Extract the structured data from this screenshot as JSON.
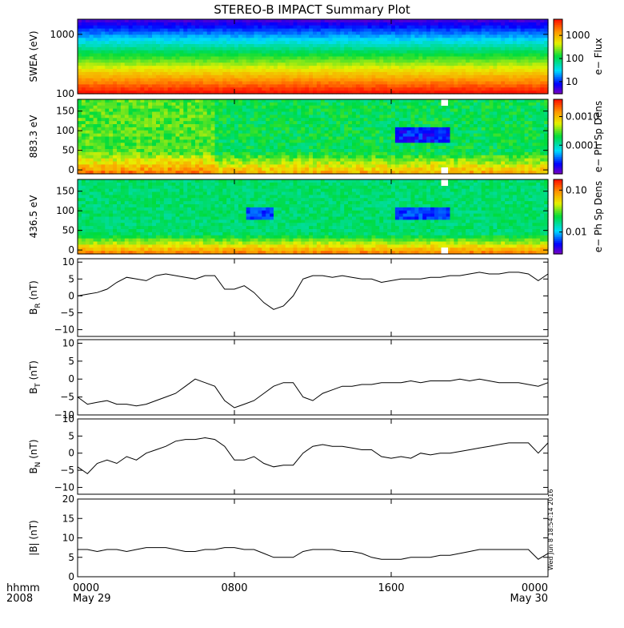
{
  "title": "STEREO-B IMPACT Summary Plot",
  "timestamp": "Wed Jun 8 18:54:14 2016",
  "time_axis": {
    "row1_label": "hhmm",
    "row2_label": "2008",
    "ticks": [
      {
        "hour": 0,
        "label": "0000",
        "date": "May 29"
      },
      {
        "hour": 8,
        "label": "0800",
        "date": ""
      },
      {
        "hour": 16,
        "label": "1600",
        "date": ""
      },
      {
        "hour": 24,
        "label": "0000",
        "date": "May 30"
      }
    ]
  },
  "colors": {
    "line": "#000000",
    "gap": "#ffffff"
  },
  "chart_data": [
    {
      "type": "heatmap",
      "id": "swea",
      "ylabel": "SWEA (eV)",
      "ylim": [
        100,
        1800
      ],
      "yscale": "log",
      "yticks": [
        {
          "v": 100,
          "label": "100"
        },
        {
          "v": 1000,
          "label": "1000"
        }
      ],
      "colorbar": {
        "label": "e− Flux",
        "scale": "log",
        "range": [
          3,
          5000
        ],
        "ticks": [
          {
            "v": 10,
            "label": "10"
          },
          {
            "v": 100,
            "label": "100"
          },
          {
            "v": 1000,
            "label": "1000"
          }
        ]
      }
    },
    {
      "type": "heatmap",
      "id": "pad883",
      "ylabel": "883.3 eV",
      "ylim": [
        -10,
        180
      ],
      "yticks": [
        {
          "v": 0,
          "label": "0"
        },
        {
          "v": 50,
          "label": "50"
        },
        {
          "v": 100,
          "label": "100"
        },
        {
          "v": 150,
          "label": "150"
        }
      ],
      "gap_hours": [
        18.55,
        18.9
      ],
      "colorbar": {
        "label": "e− Ph Sp Dens",
        "scale": "log",
        "range": [
          1e-05,
          0.004
        ],
        "ticks": [
          {
            "v": 0.0001,
            "label": "0.0001"
          },
          {
            "v": 0.001,
            "label": "0.0010"
          }
        ]
      }
    },
    {
      "type": "heatmap",
      "id": "pad436",
      "ylabel": "436.5 eV",
      "ylim": [
        -10,
        180
      ],
      "yticks": [
        {
          "v": 0,
          "label": "0"
        },
        {
          "v": 50,
          "label": "50"
        },
        {
          "v": 100,
          "label": "100"
        },
        {
          "v": 150,
          "label": "150"
        }
      ],
      "gap_hours": [
        18.55,
        18.9
      ],
      "colorbar": {
        "label": "e− Ph Sp Dens",
        "scale": "log",
        "range": [
          0.003,
          0.18
        ],
        "ticks": [
          {
            "v": 0.01,
            "label": "0.01"
          },
          {
            "v": 0.1,
            "label": "0.10"
          }
        ]
      }
    },
    {
      "type": "line",
      "id": "br",
      "ylabel_main": "B",
      "ylabel_sub": "R",
      "ylabel_unit": " (nT)",
      "ylim": [
        -12,
        11
      ],
      "yticks": [
        {
          "v": -10,
          "label": "−10"
        },
        {
          "v": -5,
          "label": "−5"
        },
        {
          "v": 0,
          "label": "0"
        },
        {
          "v": 5,
          "label": "5"
        },
        {
          "v": 10,
          "label": "10"
        }
      ],
      "x": [
        0,
        0.5,
        1,
        1.5,
        2,
        2.5,
        3,
        3.5,
        4,
        4.5,
        5,
        5.5,
        6,
        6.5,
        7,
        7.5,
        8,
        8.5,
        9,
        9.5,
        10,
        10.5,
        11,
        11.5,
        12,
        12.5,
        13,
        13.5,
        14,
        14.5,
        15,
        15.5,
        16,
        16.5,
        17,
        17.5,
        18,
        18.5,
        19,
        19.5,
        20,
        20.5,
        21,
        21.5,
        22,
        22.5,
        23,
        23.5,
        24
      ],
      "values": [
        0,
        0.5,
        1,
        2,
        4,
        5.5,
        5,
        4.5,
        6,
        6.5,
        6,
        5.5,
        5,
        6,
        6,
        2,
        2,
        3,
        1,
        -2,
        -4,
        -3,
        0,
        5,
        6,
        6,
        5.5,
        6,
        5.5,
        5,
        5,
        4,
        4.5,
        5,
        5,
        5,
        5.5,
        5.5,
        6,
        6,
        6.5,
        7,
        6.5,
        6.5,
        7,
        7,
        6.5,
        4.5,
        6.5
      ]
    },
    {
      "type": "line",
      "id": "bt",
      "ylabel_main": "B",
      "ylabel_sub": "T",
      "ylabel_unit": " (nT)",
      "ylim": [
        -10,
        11
      ],
      "yticks": [
        {
          "v": -10,
          "label": "−10"
        },
        {
          "v": -5,
          "label": "−5"
        },
        {
          "v": 0,
          "label": "0"
        },
        {
          "v": 5,
          "label": "5"
        },
        {
          "v": 10,
          "label": "10"
        }
      ],
      "x": [
        0,
        0.5,
        1,
        1.5,
        2,
        2.5,
        3,
        3.5,
        4,
        4.5,
        5,
        5.5,
        6,
        6.5,
        7,
        7.5,
        8,
        8.5,
        9,
        9.5,
        10,
        10.5,
        11,
        11.5,
        12,
        12.5,
        13,
        13.5,
        14,
        14.5,
        15,
        15.5,
        16,
        16.5,
        17,
        17.5,
        18,
        18.5,
        19,
        19.5,
        20,
        20.5,
        21,
        21.5,
        22,
        22.5,
        23,
        23.5,
        24
      ],
      "values": [
        -5,
        -7,
        -6.5,
        -6,
        -7,
        -7,
        -7.5,
        -7,
        -6,
        -5,
        -4,
        -2,
        0,
        -1,
        -2,
        -6,
        -8,
        -7,
        -6,
        -4,
        -2,
        -1,
        -1,
        -5,
        -6,
        -4,
        -3,
        -2,
        -2,
        -1.5,
        -1.5,
        -1,
        -1,
        -1,
        -0.5,
        -1,
        -0.5,
        -0.5,
        -0.5,
        0,
        -0.5,
        0,
        -0.5,
        -1,
        -1,
        -1,
        -1.5,
        -2,
        -1
      ]
    },
    {
      "type": "line",
      "id": "bn",
      "ylabel_main": "B",
      "ylabel_sub": "N",
      "ylabel_unit": " (nT)",
      "ylim": [
        -12,
        10
      ],
      "yticks": [
        {
          "v": -10,
          "label": "−10"
        },
        {
          "v": -5,
          "label": "−5"
        },
        {
          "v": 0,
          "label": "0"
        },
        {
          "v": 5,
          "label": "5"
        },
        {
          "v": 10,
          "label": "10"
        }
      ],
      "x": [
        0,
        0.5,
        1,
        1.5,
        2,
        2.5,
        3,
        3.5,
        4,
        4.5,
        5,
        5.5,
        6,
        6.5,
        7,
        7.5,
        8,
        8.5,
        9,
        9.5,
        10,
        10.5,
        11,
        11.5,
        12,
        12.5,
        13,
        13.5,
        14,
        14.5,
        15,
        15.5,
        16,
        16.5,
        17,
        17.5,
        18,
        18.5,
        19,
        19.5,
        20,
        20.5,
        21,
        21.5,
        22,
        22.5,
        23,
        23.5,
        24
      ],
      "values": [
        -4,
        -6,
        -3,
        -2,
        -3,
        -1,
        -2,
        0,
        1,
        2,
        3.5,
        4,
        4,
        4.5,
        4,
        2,
        -2,
        -2,
        -1,
        -3,
        -4,
        -3.5,
        -3.5,
        0,
        2,
        2.5,
        2,
        2,
        1.5,
        1,
        1,
        -1,
        -1.5,
        -1,
        -1.5,
        0,
        -0.5,
        0,
        0,
        0.5,
        1,
        1.5,
        2,
        2.5,
        3,
        3,
        3,
        0,
        3
      ]
    },
    {
      "type": "line",
      "id": "bmag",
      "ylabel_main": "|B|",
      "ylabel_sub": "",
      "ylabel_unit": " (nT)",
      "ylim": [
        0,
        20
      ],
      "yticks": [
        {
          "v": 0,
          "label": "0"
        },
        {
          "v": 5,
          "label": "5"
        },
        {
          "v": 10,
          "label": "10"
        },
        {
          "v": 15,
          "label": "15"
        },
        {
          "v": 20,
          "label": "20"
        }
      ],
      "x": [
        0,
        0.5,
        1,
        1.5,
        2,
        2.5,
        3,
        3.5,
        4,
        4.5,
        5,
        5.5,
        6,
        6.5,
        7,
        7.5,
        8,
        8.5,
        9,
        9.5,
        10,
        10.5,
        11,
        11.5,
        12,
        12.5,
        13,
        13.5,
        14,
        14.5,
        15,
        15.5,
        16,
        16.5,
        17,
        17.5,
        18,
        18.5,
        19,
        19.5,
        20,
        20.5,
        21,
        21.5,
        22,
        22.5,
        23,
        23.5,
        24
      ],
      "values": [
        7,
        7,
        6.5,
        7,
        7,
        6.5,
        7,
        7.5,
        7.5,
        7.5,
        7,
        6.5,
        6.5,
        7,
        7,
        7.5,
        7.5,
        7,
        7,
        6,
        5,
        5,
        5,
        6.5,
        7,
        7,
        7,
        6.5,
        6.5,
        6,
        5,
        4.5,
        4.5,
        4.5,
        5,
        5,
        5,
        5.5,
        5.5,
        6,
        6.5,
        7,
        7,
        7,
        7,
        7,
        7,
        4.5,
        6
      ]
    }
  ]
}
